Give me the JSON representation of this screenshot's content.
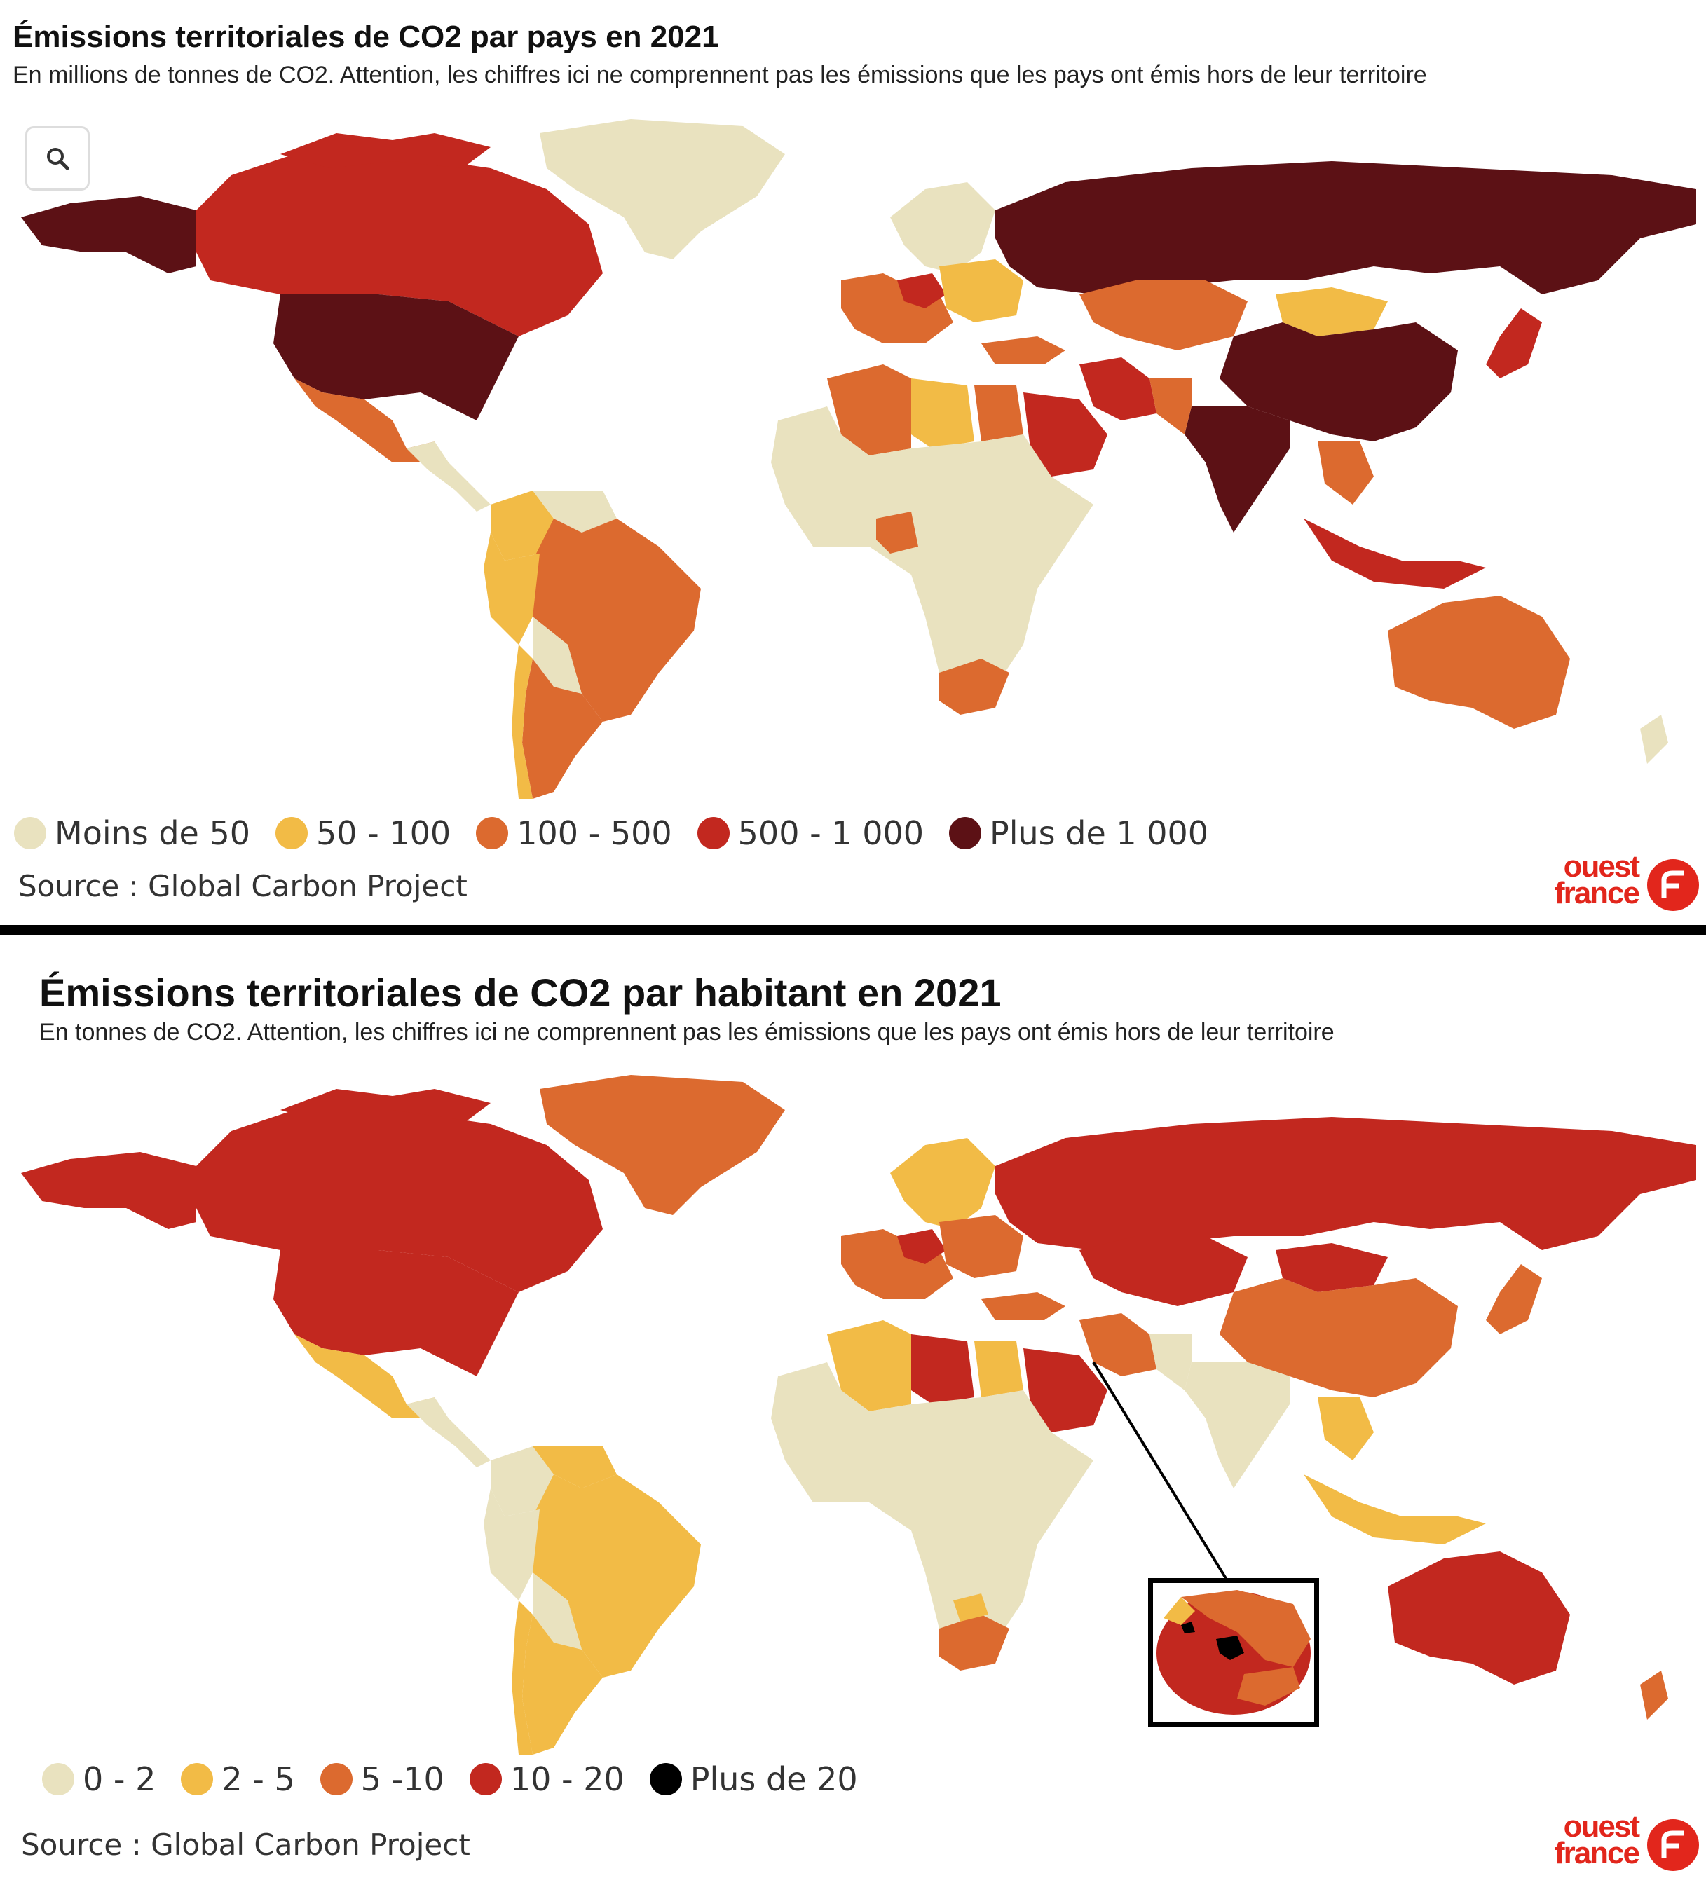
{
  "colors": {
    "lt50": "#e9e2bf",
    "c50_100": "#f2bb46",
    "c100_500": "#dc6a2f",
    "c500_1000": "#c2281f",
    "gt1000": "#5c1115",
    "pc0_2": "#e9e2bf",
    "pc2_5": "#f2bb46",
    "pc5_10": "#dc6a2f",
    "pc10_20": "#c2281f",
    "pcgt20": "#000000",
    "brand": "#e2261c"
  },
  "map1": {
    "title": "Émissions territoriales de CO2 par pays en 2021",
    "subtitle": "En millions de tonnes de CO2. Attention, les chiffres ici ne comprennent pas les émissions que les pays ont émis hors de leur territoire",
    "search_icon": "search-icon",
    "legend": [
      {
        "label": "Moins de 50",
        "color": "#e9e2bf"
      },
      {
        "label": "50 - 100",
        "color": "#f2bb46"
      },
      {
        "label": "100 - 500",
        "color": "#dc6a2f"
      },
      {
        "label": "500 - 1 000",
        "color": "#c2281f"
      },
      {
        "label": "Plus de 1 000",
        "color": "#5c1115"
      }
    ],
    "source": "Source : Global Carbon Project",
    "logo": {
      "line1": "ouest",
      "line2": "france"
    }
  },
  "map2": {
    "title": "Émissions territoriales de CO2 par habitant en 2021",
    "subtitle": "En tonnes de CO2. Attention, les chiffres ici ne comprennent pas les émissions que les pays ont émis hors de leur territoire",
    "legend": [
      {
        "label": "0 - 2",
        "color": "#e9e2bf"
      },
      {
        "label": "2 - 5",
        "color": "#f2bb46"
      },
      {
        "label": "5 -10",
        "color": "#dc6a2f"
      },
      {
        "label": "10 - 20",
        "color": "#c2281f"
      },
      {
        "label": "Plus de 20",
        "color": "#000000"
      }
    ],
    "source": "Source : Global Carbon Project",
    "logo": {
      "line1": "ouest",
      "line2": "france"
    }
  }
}
